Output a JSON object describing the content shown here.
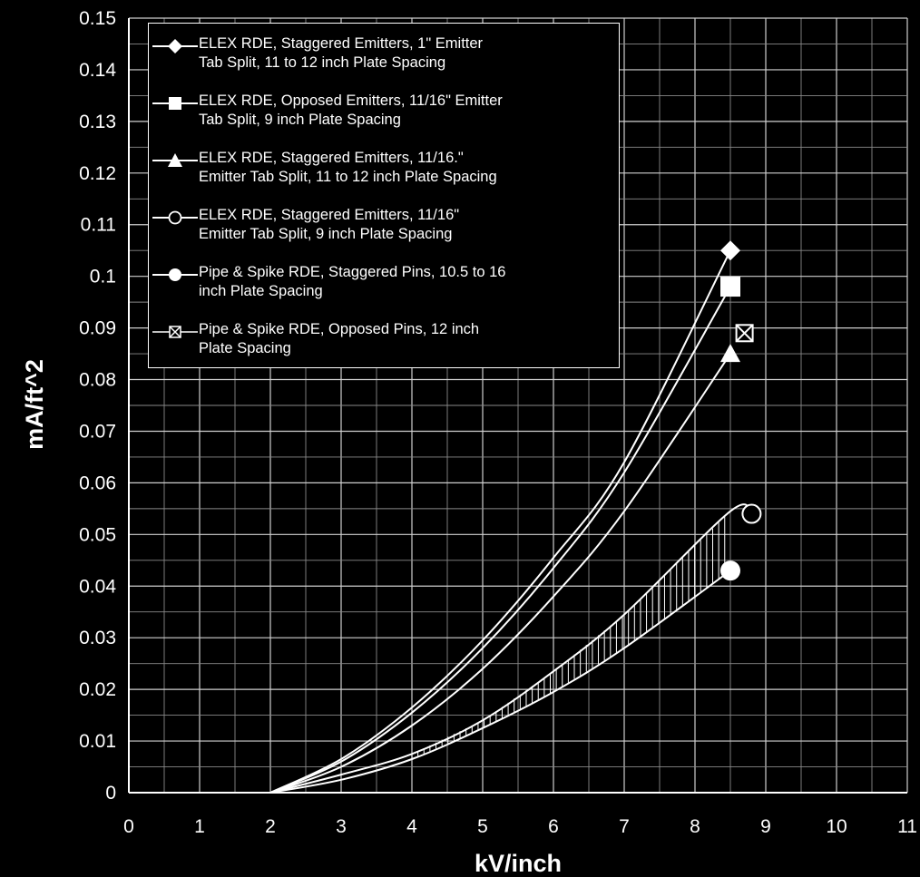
{
  "chart_data": {
    "type": "line",
    "xlabel": "kV/inch",
    "ylabel": "mA/ft^2",
    "xlim": [
      0,
      11
    ],
    "ylim": [
      0,
      0.15
    ],
    "x_ticks": [
      "0",
      "1",
      "2",
      "3",
      "4",
      "5",
      "6",
      "7",
      "8",
      "9",
      "10",
      "11"
    ],
    "y_ticks": [
      "0",
      "0.01",
      "0.02",
      "0.03",
      "0.04",
      "0.05",
      "0.06",
      "0.07",
      "0.08",
      "0.09",
      "0.1",
      "0.11",
      "0.12",
      "0.13",
      "0.14",
      "0.15"
    ],
    "grid": true,
    "legend_position": "top-left",
    "series": [
      {
        "name": "ELEX RDE, Staggered Emitters, 1\" Emitter Tab Split, 11 to 12 inch Plate Spacing",
        "marker": "diamond",
        "x": [
          2,
          3,
          4,
          5,
          6,
          7,
          8.5
        ],
        "y": [
          0,
          0.0065,
          0.0165,
          0.0295,
          0.0455,
          0.064,
          0.105
        ]
      },
      {
        "name": "ELEX RDE, Opposed Emitters, 11/16\" Emitter Tab Split, 9 inch Plate Spacing",
        "marker": "square",
        "x": [
          2,
          3,
          4,
          5,
          6,
          7,
          8.5
        ],
        "y": [
          0,
          0.006,
          0.0155,
          0.028,
          0.0435,
          0.062,
          0.098
        ]
      },
      {
        "name": "ELEX RDE, Staggered Emitters, 11/16.\" Emitter Tab Split, 11 to 12 inch Plate Spacing",
        "marker": "triangle",
        "x": [
          2,
          3,
          4,
          5,
          6,
          7,
          8.5
        ],
        "y": [
          0,
          0.005,
          0.013,
          0.024,
          0.038,
          0.0545,
          0.085
        ]
      },
      {
        "name": "ELEX RDE, Staggered Emitters, 11/16\" Emitter Tab Split, 9 inch Plate Spacing",
        "marker": "open-circle",
        "x": [
          2,
          3,
          4,
          5,
          6,
          7,
          8.5,
          8.8
        ],
        "y": [
          0,
          0.0035,
          0.0075,
          0.014,
          0.0235,
          0.0345,
          0.0545,
          0.054
        ]
      },
      {
        "name": "Pipe & Spike RDE, Staggered Pins, 10.5 to 16 inch Plate Spacing",
        "marker": "filled-circle",
        "x": [
          2,
          3,
          4,
          5,
          6,
          7,
          8.5
        ],
        "y": [
          0,
          0.0025,
          0.0065,
          0.0125,
          0.0195,
          0.028,
          0.043
        ]
      },
      {
        "name": "Pipe & Spike RDE, Opposed Pins, 12 inch Plate Spacing",
        "marker": "crossed-square",
        "x": [
          8.7
        ],
        "y": [
          0.089
        ]
      }
    ]
  },
  "legend": {
    "items": [
      {
        "label": "ELEX RDE, Staggered Emitters, 1\" Emitter\nTab Split, 11 to 12 inch Plate Spacing",
        "marker": "diamond"
      },
      {
        "label": "ELEX RDE, Opposed Emitters, 11/16\" Emitter\nTab Split, 9 inch Plate Spacing",
        "marker": "square"
      },
      {
        "label": "ELEX RDE, Staggered Emitters, 11/16.\"\nEmitter Tab Split, 11 to 12 inch Plate Spacing",
        "marker": "triangle"
      },
      {
        "label": "ELEX RDE, Staggered Emitters, 11/16\"\nEmitter Tab Split, 9 inch Plate Spacing",
        "marker": "open-circle"
      },
      {
        "label": "Pipe & Spike RDE, Staggered Pins, 10.5 to 16\ninch Plate Spacing",
        "marker": "filled-circle"
      },
      {
        "label": "Pipe & Spike RDE, Opposed Pins, 12 inch\nPlate Spacing",
        "marker": "crossed-square"
      }
    ]
  },
  "colors": {
    "background": "#000000",
    "foreground": "#ffffff"
  }
}
